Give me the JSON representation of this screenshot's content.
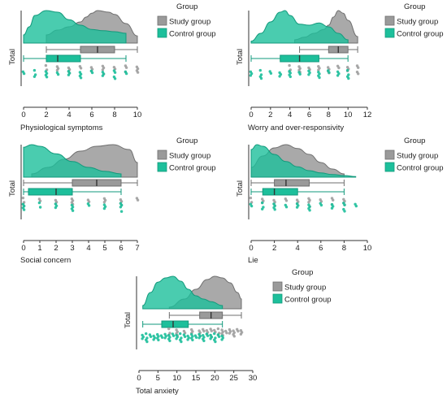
{
  "colors": {
    "study": "#9a9a9a",
    "study_edge": "#6f6f6f",
    "control": "#1dbf9b",
    "control_edge": "#129a7c",
    "text": "#222222"
  },
  "chart_data": [
    {
      "type": "raincloud",
      "title": "",
      "xlabel": "Physiological symptoms",
      "ylabel": "Total",
      "xlim": [
        0,
        10
      ],
      "xticks": [
        "0",
        "2",
        "4",
        "6",
        "8",
        "10"
      ],
      "legend": {
        "title": "Group",
        "placement": "right",
        "entries": [
          "Study group",
          "Control group"
        ]
      },
      "series": [
        {
          "name": "Study group",
          "density": [
            [
              2,
              0.25
            ],
            [
              3,
              0.4
            ],
            [
              4,
              0.5
            ],
            [
              5,
              0.65
            ],
            [
              5.5,
              0.8
            ],
            [
              6,
              0.92
            ],
            [
              6.5,
              1.0
            ],
            [
              7.5,
              0.95
            ],
            [
              8,
              0.88
            ],
            [
              9,
              0.6
            ],
            [
              10,
              0.22
            ]
          ],
          "box": {
            "min": 2,
            "q1": 5,
            "median": 6.5,
            "q3": 8,
            "max": 10
          },
          "points": [
            2,
            3,
            4,
            5,
            6,
            7,
            8,
            9,
            10
          ]
        },
        {
          "name": "Control group",
          "density": [
            [
              0,
              0.25
            ],
            [
              0.5,
              0.5
            ],
            [
              1,
              0.85
            ],
            [
              2,
              1.0
            ],
            [
              3,
              0.95
            ],
            [
              4,
              0.72
            ],
            [
              5,
              0.55
            ],
            [
              6,
              0.42
            ],
            [
              7,
              0.38
            ],
            [
              8,
              0.35
            ],
            [
              9,
              0.3
            ]
          ],
          "box": {
            "min": 0,
            "q1": 2,
            "median": 3,
            "q3": 5,
            "max": 9
          },
          "points": [
            0,
            1,
            2,
            3,
            4,
            5,
            6,
            7,
            8,
            9
          ]
        }
      ]
    },
    {
      "type": "raincloud",
      "title": "",
      "xlabel": "Worry and over-responsivity",
      "ylabel": "Total",
      "xlim": [
        0,
        12
      ],
      "xticks": [
        "0",
        "2",
        "4",
        "6",
        "8",
        "10",
        "12"
      ],
      "legend": {
        "title": "Group",
        "placement": "right",
        "entries": [
          "Study group",
          "Control group"
        ]
      },
      "series": [
        {
          "name": "Study group",
          "density": [
            [
              4.5,
              0.1
            ],
            [
              5.5,
              0.18
            ],
            [
              6.5,
              0.3
            ],
            [
              7.5,
              0.42
            ],
            [
              8,
              0.55
            ],
            [
              8.5,
              0.8
            ],
            [
              9,
              1.0
            ],
            [
              9.5,
              0.92
            ],
            [
              10,
              0.7
            ],
            [
              11,
              0.2
            ]
          ],
          "box": {
            "min": 5,
            "q1": 8,
            "median": 9,
            "q3": 10,
            "max": 11
          },
          "points": [
            4,
            5,
            6,
            7,
            8,
            9,
            10,
            11
          ]
        },
        {
          "name": "Control group",
          "density": [
            [
              0,
              0.06
            ],
            [
              1,
              0.3
            ],
            [
              2,
              0.65
            ],
            [
              3,
              0.95
            ],
            [
              3.5,
              1.0
            ],
            [
              4,
              0.85
            ],
            [
              5,
              0.58
            ],
            [
              6,
              0.55
            ],
            [
              7,
              0.62
            ],
            [
              8,
              0.5
            ],
            [
              9,
              0.3
            ],
            [
              10,
              0.1
            ]
          ],
          "box": {
            "min": 0,
            "q1": 3,
            "median": 5,
            "q3": 7,
            "max": 10
          },
          "points": [
            0,
            1,
            2,
            3,
            4,
            5,
            6,
            7,
            8,
            9,
            10
          ]
        }
      ]
    },
    {
      "type": "raincloud",
      "title": "",
      "xlabel": "Social concern",
      "ylabel": "Total",
      "xlim": [
        0,
        7
      ],
      "xticks": [
        "0",
        "1",
        "2",
        "3",
        "4",
        "5",
        "6",
        "7"
      ],
      "legend": {
        "title": "Group",
        "placement": "right",
        "entries": [
          "Study group",
          "Control group"
        ]
      },
      "series": [
        {
          "name": "Study group",
          "density": [
            [
              0.5,
              0.1
            ],
            [
              1.5,
              0.3
            ],
            [
              2.5,
              0.55
            ],
            [
              3.5,
              0.8
            ],
            [
              4.5,
              0.95
            ],
            [
              5.5,
              1.0
            ],
            [
              6.5,
              0.85
            ],
            [
              7,
              0.45
            ]
          ],
          "box": {
            "min": 0,
            "q1": 3,
            "median": 4.5,
            "q3": 6,
            "max": 7
          },
          "points": [
            0,
            1,
            2,
            3,
            4,
            5,
            6,
            7
          ]
        },
        {
          "name": "Control group",
          "density": [
            [
              0,
              0.92
            ],
            [
              0.5,
              1.0
            ],
            [
              1,
              0.95
            ],
            [
              2,
              0.72
            ],
            [
              3,
              0.48
            ],
            [
              4,
              0.3
            ],
            [
              5,
              0.18
            ],
            [
              6,
              0.1
            ]
          ],
          "box": {
            "min": 0,
            "q1": 0.3,
            "median": 2,
            "q3": 3,
            "max": 6
          },
          "points": [
            0,
            1,
            2,
            3,
            4,
            5,
            6
          ]
        }
      ]
    },
    {
      "type": "raincloud",
      "title": "",
      "xlabel": "Lie",
      "ylabel": "Total",
      "xlim": [
        0,
        10
      ],
      "xticks": [
        "0",
        "2",
        "4",
        "6",
        "8",
        "10"
      ],
      "legend": {
        "title": "Group",
        "placement": "right",
        "entries": [
          "Study group",
          "Control group"
        ]
      },
      "series": [
        {
          "name": "Study group",
          "density": [
            [
              0,
              0.3
            ],
            [
              1,
              0.65
            ],
            [
              2,
              0.9
            ],
            [
              3,
              1.0
            ],
            [
              4,
              0.88
            ],
            [
              5,
              0.7
            ],
            [
              6,
              0.45
            ],
            [
              7,
              0.25
            ],
            [
              8,
              0.1
            ]
          ],
          "box": {
            "min": 0,
            "q1": 2,
            "median": 3,
            "q3": 5,
            "max": 8
          },
          "points": [
            0,
            1,
            2,
            3,
            4,
            5,
            6,
            7,
            8
          ]
        },
        {
          "name": "Control group",
          "density": [
            [
              0,
              0.85
            ],
            [
              0.5,
              1.0
            ],
            [
              1,
              0.95
            ],
            [
              2,
              0.7
            ],
            [
              3,
              0.48
            ],
            [
              4,
              0.32
            ],
            [
              5,
              0.2
            ],
            [
              6,
              0.13
            ],
            [
              7,
              0.08
            ],
            [
              8,
              0.05
            ],
            [
              9,
              0.02
            ]
          ],
          "box": {
            "min": 0,
            "q1": 1,
            "median": 2,
            "q3": 4,
            "max": 8
          },
          "points": [
            0,
            1,
            2,
            3,
            4,
            5,
            6,
            7,
            8,
            9
          ]
        }
      ]
    },
    {
      "type": "raincloud",
      "title": "",
      "xlabel": "Total anxiety",
      "ylabel": "Total",
      "xlim": [
        0,
        30
      ],
      "xticks": [
        "0",
        "5",
        "10",
        "15",
        "20",
        "25",
        "30"
      ],
      "legend": {
        "title": "Group",
        "placement": "right",
        "entries": [
          "Study group",
          "Control group"
        ]
      },
      "series": [
        {
          "name": "Study group",
          "density": [
            [
              8,
              0.05
            ],
            [
              12,
              0.3
            ],
            [
              15,
              0.6
            ],
            [
              18,
              0.9
            ],
            [
              20,
              1.0
            ],
            [
              22,
              0.95
            ],
            [
              24,
              0.8
            ],
            [
              26,
              0.5
            ],
            [
              27,
              0.3
            ]
          ],
          "box": {
            "min": 8,
            "q1": 16,
            "median": 19,
            "q3": 22,
            "max": 27
          },
          "points": [
            8,
            10,
            12,
            14,
            16,
            17,
            18,
            19,
            20,
            21,
            22,
            23,
            24,
            25,
            26,
            27
          ]
        },
        {
          "name": "Control group",
          "density": [
            [
              1,
              0.1
            ],
            [
              3,
              0.5
            ],
            [
              5,
              0.82
            ],
            [
              7,
              0.95
            ],
            [
              9,
              1.0
            ],
            [
              11,
              0.85
            ],
            [
              13,
              0.6
            ],
            [
              15,
              0.4
            ],
            [
              17,
              0.3
            ],
            [
              19,
              0.22
            ],
            [
              22,
              0.1
            ]
          ],
          "box": {
            "min": 1,
            "q1": 6,
            "median": 9,
            "q3": 13,
            "max": 22
          },
          "points": [
            1,
            2,
            3,
            4,
            5,
            6,
            7,
            8,
            9,
            10,
            11,
            12,
            13,
            14,
            15,
            16,
            17,
            18,
            19,
            20,
            21,
            22
          ]
        }
      ]
    }
  ]
}
